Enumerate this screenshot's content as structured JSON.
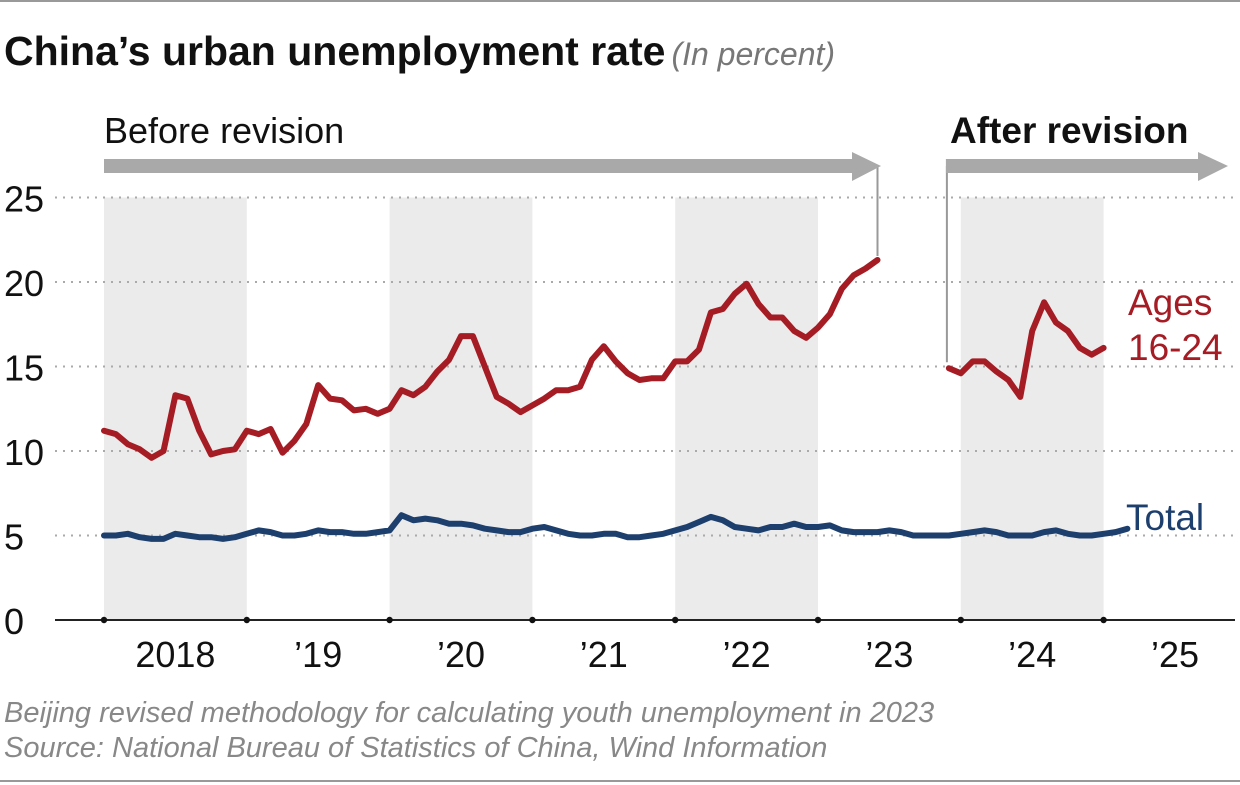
{
  "title": "China’s urban unemployment rate",
  "subtitle": "(In percent)",
  "footnote": "Beijing revised methodology for calculating youth unemployment in 2023",
  "source": "Source: National Bureau of Statistics of China, Wind Information",
  "annotations": {
    "before": "Before revision",
    "after": "After revision"
  },
  "colors": {
    "youth": "#a51c24",
    "total": "#1d3f6e",
    "band": "#ebebeb",
    "arrow": "#a9a9a9",
    "grid": "#aaaaaa"
  },
  "chart_data": {
    "type": "line",
    "title": "China’s urban unemployment rate",
    "ylabel": "In percent",
    "ylim": [
      0,
      25
    ],
    "yticks": [
      "0",
      "5",
      "10",
      "15",
      "20",
      "25"
    ],
    "xticks": [
      {
        "label": "2018",
        "year": 2018
      },
      {
        "label": "’19",
        "year": 2019
      },
      {
        "label": "’20",
        "year": 2020
      },
      {
        "label": "’21",
        "year": 2021
      },
      {
        "label": "’22",
        "year": 2022
      },
      {
        "label": "’23",
        "year": 2023
      },
      {
        "label": "’24",
        "year": 2024
      },
      {
        "label": "’25",
        "year": 2025
      }
    ],
    "start_year": 2018,
    "series": [
      {
        "name": "Ages 16-24 (before revision)",
        "label": [
          "Ages",
          "16-24"
        ],
        "start_index": 0,
        "values": [
          11.2,
          11.0,
          10.4,
          10.1,
          9.6,
          10.0,
          13.3,
          13.1,
          11.2,
          9.8,
          10.0,
          10.1,
          11.2,
          11.0,
          11.3,
          9.9,
          10.6,
          11.6,
          13.9,
          13.1,
          13.0,
          12.4,
          12.5,
          12.2,
          12.5,
          13.6,
          13.3,
          13.8,
          14.7,
          15.4,
          16.8,
          16.8,
          15.0,
          13.2,
          12.8,
          12.3,
          12.7,
          13.1,
          13.6,
          13.6,
          13.8,
          15.4,
          16.2,
          15.3,
          14.6,
          14.2,
          14.3,
          14.3,
          15.3,
          15.3,
          16.0,
          18.2,
          18.4,
          19.3,
          19.9,
          18.7,
          17.9,
          17.9,
          17.1,
          16.7,
          17.3,
          18.1,
          19.6,
          20.4,
          20.8,
          21.3
        ]
      },
      {
        "name": "Ages 16-24 (after revision)",
        "start_index": 71,
        "values": [
          14.9,
          14.6,
          15.3,
          15.3,
          14.7,
          14.2,
          13.2,
          17.1,
          18.8,
          17.6,
          17.1,
          16.1,
          15.7,
          16.1
        ]
      },
      {
        "name": "Total",
        "label": [
          "Total"
        ],
        "start_index": 0,
        "values": [
          5.0,
          5.0,
          5.1,
          4.9,
          4.8,
          4.8,
          5.1,
          5.0,
          4.9,
          4.9,
          4.8,
          4.9,
          5.1,
          5.3,
          5.2,
          5.0,
          5.0,
          5.1,
          5.3,
          5.2,
          5.2,
          5.1,
          5.1,
          5.2,
          5.3,
          6.2,
          5.9,
          6.0,
          5.9,
          5.7,
          5.7,
          5.6,
          5.4,
          5.3,
          5.2,
          5.2,
          5.4,
          5.5,
          5.3,
          5.1,
          5.0,
          5.0,
          5.1,
          5.1,
          4.9,
          4.9,
          5.0,
          5.1,
          5.3,
          5.5,
          5.8,
          6.1,
          5.9,
          5.5,
          5.4,
          5.3,
          5.5,
          5.5,
          5.7,
          5.5,
          5.5,
          5.6,
          5.3,
          5.2,
          5.2,
          5.2,
          5.3,
          5.2,
          5.0,
          5.0,
          5.0,
          5.0,
          5.1,
          5.2,
          5.3,
          5.2,
          5.0,
          5.0,
          5.0,
          5.2,
          5.3,
          5.1,
          5.0,
          5.0,
          5.1,
          5.2,
          5.4
        ]
      }
    ]
  }
}
